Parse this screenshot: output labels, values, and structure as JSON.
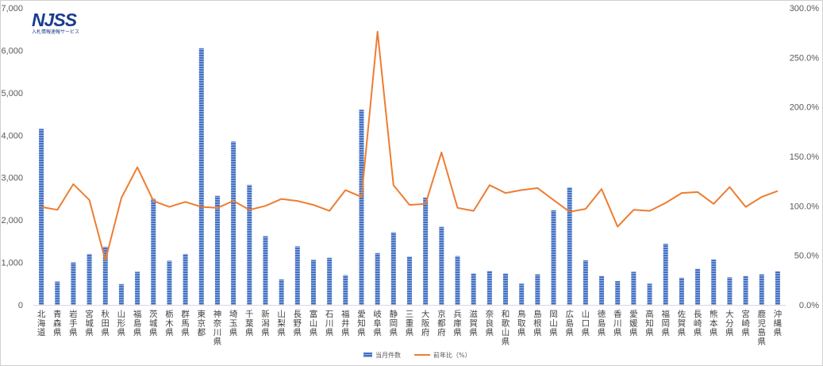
{
  "logo": {
    "mark": "NJSS",
    "subtitle": "入札情報速報サービス"
  },
  "chart_data": {
    "type": "bar",
    "categories": [
      "北海道",
      "青森県",
      "岩手県",
      "宮城県",
      "秋田県",
      "山形県",
      "福島県",
      "茨城県",
      "栃木県",
      "群馬県",
      "東京都",
      "神奈川県",
      "埼玉県",
      "千葉県",
      "新潟県",
      "山梨県",
      "長野県",
      "富山県",
      "石川県",
      "福井県",
      "愛知県",
      "岐阜県",
      "静岡県",
      "三重県",
      "大阪府",
      "京都府",
      "兵庫県",
      "滋賀県",
      "奈良県",
      "和歌山県",
      "鳥取県",
      "島根県",
      "岡山県",
      "広島県",
      "山口県",
      "徳島県",
      "香川県",
      "愛媛県",
      "高知県",
      "福岡県",
      "佐賀県",
      "長崎県",
      "熊本県",
      "大分県",
      "宮崎県",
      "鹿児島県",
      "沖縄県"
    ],
    "series": [
      {
        "name": "当月件数",
        "type": "bar",
        "axis": "left",
        "color": "#4472c4",
        "values": [
          4150,
          550,
          1000,
          1200,
          1370,
          490,
          780,
          2500,
          1040,
          1200,
          6050,
          2570,
          3850,
          2830,
          1620,
          600,
          1380,
          1060,
          1110,
          700,
          4600,
          1220,
          1710,
          1140,
          2530,
          1840,
          1150,
          740,
          800,
          740,
          500,
          720,
          2230,
          2770,
          1050,
          680,
          560,
          780,
          500,
          1440,
          640,
          850,
          1070,
          650,
          680,
          720,
          790
        ]
      },
      {
        "name": "前年比（%）",
        "type": "line",
        "axis": "right",
        "color": "#ed7d31",
        "values": [
          99,
          96,
          122,
          106,
          45,
          108,
          139,
          105,
          99,
          104,
          99,
          98,
          105,
          96,
          100,
          107,
          105,
          101,
          95,
          116,
          109,
          276,
          121,
          101,
          102,
          154,
          98,
          95,
          121,
          113,
          116,
          118,
          106,
          94,
          97,
          117,
          79,
          96,
          95,
          103,
          113,
          114,
          102,
          119,
          99,
          109,
          115
        ]
      }
    ],
    "y_left": {
      "min": 0,
      "max": 7000,
      "ticks": [
        "0",
        "1,000",
        "2,000",
        "3,000",
        "4,000",
        "5,000",
        "6,000",
        "7,000"
      ]
    },
    "y_right": {
      "min": 0,
      "max": 300,
      "ticks": [
        "0.0%",
        "50.0%",
        "100.0%",
        "150.0%",
        "200.0%",
        "250.0%",
        "300.0%"
      ]
    },
    "legend": {
      "position": "bottom",
      "items": [
        "当月件数",
        "前年比（%）"
      ]
    },
    "grid": false
  }
}
